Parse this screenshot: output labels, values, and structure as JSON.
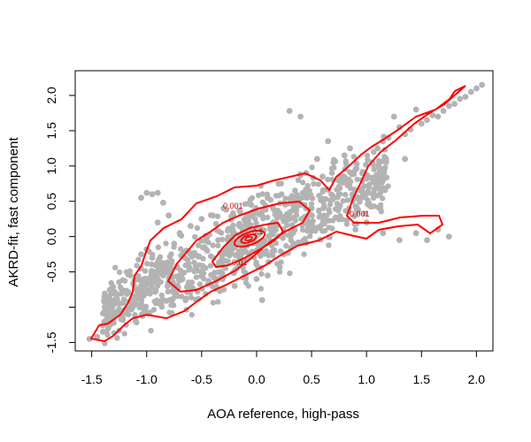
{
  "chart_data": {
    "type": "scatter",
    "title": "",
    "xlabel": "AOA reference, high-pass",
    "ylabel": "AKRD-fit, fast component",
    "xlim": [
      -1.65,
      2.15
    ],
    "ylim": [
      -1.62,
      2.35
    ],
    "xticks": [
      -1.5,
      -1.0,
      -0.5,
      0.0,
      0.5,
      1.0,
      1.5,
      2.0
    ],
    "xtick_labels": [
      "-1.5",
      "-1.0",
      "-0.5",
      "0.0",
      "0.5",
      "1.0",
      "1.5",
      "2.0"
    ],
    "yticks": [
      -1.5,
      -1.0,
      -0.5,
      0.0,
      0.5,
      1.0,
      1.5,
      2.0
    ],
    "ytick_labels": [
      "-1.5",
      "",
      "-0.5",
      "0.0",
      "0.5",
      "1.0",
      "1.5",
      "2.0"
    ],
    "grid": false,
    "colors": {
      "points": "#b3b3b3",
      "contours": "#ff0000",
      "contour_labels": "#d40000",
      "axes": "#000000"
    },
    "series": [
      {
        "kind": "points",
        "values": [
          [
            -1.52,
            -1.45
          ],
          [
            -1.45,
            -1.42
          ],
          [
            -1.4,
            -1.35
          ],
          [
            -1.35,
            -1.3
          ],
          [
            -1.3,
            -1.22
          ],
          [
            -1.25,
            -1.1
          ],
          [
            -1.2,
            -1.05
          ],
          [
            -1.15,
            -1.0
          ],
          [
            -1.1,
            -0.95
          ],
          [
            -1.05,
            -0.88
          ],
          [
            -1.0,
            -0.8
          ],
          [
            -0.95,
            -0.72
          ],
          [
            -0.9,
            -0.6
          ],
          [
            -0.85,
            -0.55
          ],
          [
            -0.8,
            -0.5
          ],
          [
            -1.05,
            0.55
          ],
          [
            -1.0,
            0.62
          ],
          [
            -0.95,
            0.6
          ],
          [
            -0.9,
            0.62
          ],
          [
            -0.85,
            0.48
          ],
          [
            -1.1,
            -0.6
          ],
          [
            -1.05,
            -0.25
          ],
          [
            -1.0,
            -0.18
          ],
          [
            -0.95,
            -0.3
          ],
          [
            -0.9,
            0.2
          ],
          [
            -0.8,
            0.3
          ],
          [
            -0.75,
            -0.1
          ],
          [
            -0.7,
            0.05
          ],
          [
            -0.65,
            -0.3
          ],
          [
            -0.6,
            0.15
          ],
          [
            -0.55,
            -0.45
          ],
          [
            -0.5,
            0.25
          ],
          [
            -0.45,
            -0.2
          ],
          [
            -0.4,
            0.3
          ],
          [
            -0.35,
            -0.05
          ],
          [
            -0.3,
            0.4
          ],
          [
            -0.25,
            0.1
          ],
          [
            -0.2,
            -0.15
          ],
          [
            -0.15,
            0.35
          ],
          [
            -0.1,
            0.05
          ],
          [
            -0.05,
            0.45
          ],
          [
            0.0,
            -0.1
          ],
          [
            0.05,
            0.3
          ],
          [
            0.1,
            0.55
          ],
          [
            0.15,
            0.2
          ],
          [
            0.2,
            0.75
          ],
          [
            0.25,
            -0.25
          ],
          [
            0.3,
            1.78
          ],
          [
            0.35,
            0.65
          ],
          [
            0.4,
            1.7
          ],
          [
            0.45,
            0.9
          ],
          [
            0.5,
            0.4
          ],
          [
            0.55,
            1.1
          ],
          [
            0.6,
            0.85
          ],
          [
            0.65,
            1.35
          ],
          [
            0.7,
            1.05
          ],
          [
            0.75,
            0.6
          ],
          [
            0.8,
            1.15
          ],
          [
            0.85,
            1.25
          ],
          [
            0.9,
            0.95
          ],
          [
            0.95,
            0.65
          ],
          [
            1.0,
            0.2
          ],
          [
            1.05,
            1.05
          ],
          [
            1.1,
            1.25
          ],
          [
            1.15,
            1.35
          ],
          [
            1.2,
            1.4
          ],
          [
            1.25,
            1.7
          ],
          [
            1.3,
            1.55
          ],
          [
            1.35,
            1.45
          ],
          [
            1.4,
            1.52
          ],
          [
            1.45,
            1.8
          ],
          [
            1.5,
            1.6
          ],
          [
            1.55,
            1.65
          ],
          [
            1.6,
            1.72
          ],
          [
            1.65,
            1.7
          ],
          [
            1.7,
            1.78
          ],
          [
            1.75,
            1.85
          ],
          [
            1.8,
            1.88
          ],
          [
            1.85,
            1.95
          ],
          [
            1.9,
            1.98
          ],
          [
            1.95,
            2.05
          ],
          [
            2.0,
            2.1
          ],
          [
            2.05,
            2.15
          ],
          [
            1.15,
            0.05
          ],
          [
            1.3,
            -0.05
          ],
          [
            1.45,
            0.05
          ],
          [
            1.55,
            -0.05
          ],
          [
            1.65,
            0.1
          ],
          [
            1.75,
            0.0
          ],
          [
            0.9,
            0.1
          ],
          [
            -0.35,
            -0.6
          ],
          [
            -0.3,
            -0.75
          ],
          [
            -0.2,
            -0.7
          ],
          [
            0.0,
            -0.6
          ],
          [
            0.1,
            -0.55
          ],
          [
            -0.6,
            -0.75
          ],
          [
            -0.75,
            -0.7
          ],
          [
            -0.7,
            -0.55
          ],
          [
            0.05,
            -0.9
          ],
          [
            1.35,
            1.1
          ]
        ]
      },
      {
        "kind": "contours",
        "levels": [
          {
            "label": "0.001"
          },
          {
            "label": "0.01"
          },
          {
            "label": "0.1"
          }
        ]
      }
    ]
  }
}
